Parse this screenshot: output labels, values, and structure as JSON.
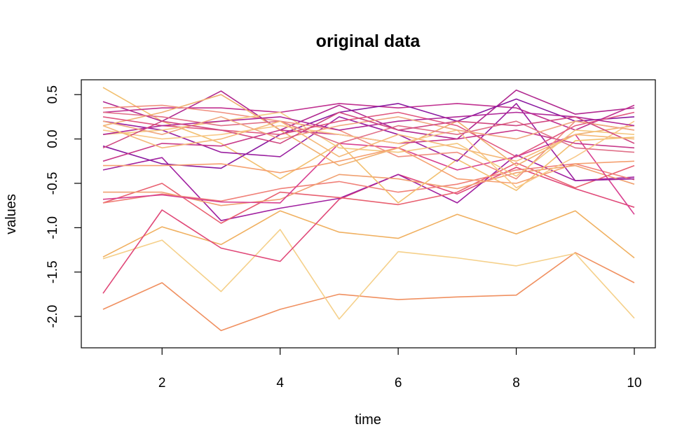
{
  "chart_data": {
    "type": "line",
    "title": "original data",
    "xlabel": "time",
    "ylabel": "values",
    "x": [
      1,
      2,
      3,
      4,
      5,
      6,
      7,
      8,
      9,
      10
    ],
    "xlim": [
      1,
      10
    ],
    "ylim": [
      -2.2,
      0.6
    ],
    "xticks": [
      2,
      4,
      6,
      8,
      10
    ],
    "xtick_labels": [
      "2",
      "4",
      "6",
      "8",
      "10"
    ],
    "yticks": [
      -2.0,
      -1.5,
      -1.0,
      -0.5,
      0.0,
      0.5
    ],
    "ytick_labels": [
      "-2.0",
      "-1.5",
      "-1.0",
      "-0.5",
      "0.0",
      "0.5"
    ],
    "grid": false,
    "legend": "none",
    "series": [
      {
        "color": "#f09060",
        "values": [
          -1.92,
          -1.62,
          -2.16,
          -1.92,
          -1.75,
          -1.81,
          -1.78,
          -1.76,
          -1.28,
          -1.62
        ]
      },
      {
        "color": "#f5d08a",
        "values": [
          -1.35,
          -1.14,
          -1.72,
          -1.02,
          -2.03,
          -1.27,
          -1.34,
          -1.43,
          -1.29,
          -2.02
        ]
      },
      {
        "color": "#f0b060",
        "values": [
          -1.33,
          -0.99,
          -1.19,
          -0.81,
          -1.05,
          -1.12,
          -0.85,
          -1.07,
          -0.81,
          -1.34
        ]
      },
      {
        "color": "#e04878",
        "values": [
          -1.74,
          -0.8,
          -1.23,
          -1.38,
          -0.68,
          -0.4,
          -0.62,
          -0.32,
          -0.56,
          -0.77
        ]
      },
      {
        "color": "#a020a0",
        "values": [
          -0.35,
          -0.21,
          -0.92,
          -0.78,
          -0.67,
          -0.4,
          -0.72,
          -0.18,
          -0.47,
          -0.43
        ]
      },
      {
        "color": "#e86070",
        "values": [
          -0.72,
          -0.5,
          -0.95,
          -0.6,
          -0.66,
          -0.74,
          -0.6,
          -0.27,
          -0.55,
          -0.3
        ]
      },
      {
        "color": "#f08078",
        "values": [
          -0.72,
          -0.62,
          -0.7,
          -0.56,
          -0.48,
          -0.6,
          -0.51,
          -0.35,
          -0.28,
          -0.46
        ]
      },
      {
        "color": "#f0a070",
        "values": [
          -0.6,
          -0.6,
          -0.75,
          -0.68,
          -0.4,
          -0.45,
          -0.56,
          -0.38,
          -0.3,
          -0.51
        ]
      },
      {
        "color": "#d84090",
        "values": [
          -0.68,
          -0.63,
          -0.71,
          -0.72,
          -0.05,
          -0.1,
          -0.35,
          -0.2,
          0.05,
          -0.85
        ]
      },
      {
        "color": "#f2c070",
        "values": [
          0.58,
          0.2,
          -0.05,
          -0.45,
          -0.05,
          -0.72,
          -0.23,
          -0.58,
          -0.02,
          0.02
        ]
      },
      {
        "color": "#b02890",
        "values": [
          0.42,
          0.2,
          0.54,
          0.1,
          0.38,
          0.1,
          0.0,
          0.55,
          0.28,
          0.35
        ]
      },
      {
        "color": "#c03090",
        "values": [
          0.3,
          0.35,
          0.35,
          0.3,
          0.4,
          0.35,
          0.4,
          0.35,
          0.1,
          0.38
        ]
      },
      {
        "color": "#8a1aa0",
        "values": [
          -0.08,
          -0.28,
          -0.33,
          0.05,
          0.3,
          0.4,
          0.2,
          0.45,
          0.2,
          0.25
        ]
      },
      {
        "color": "#9a20a0",
        "values": [
          0.2,
          0.1,
          -0.15,
          -0.2,
          0.25,
          0.05,
          -0.25,
          0.4,
          -0.47,
          -0.45
        ]
      },
      {
        "color": "#f09080",
        "values": [
          0.35,
          0.38,
          0.3,
          0.2,
          0.1,
          -0.2,
          -0.15,
          -0.45,
          0.2,
          0.1
        ]
      },
      {
        "color": "#f0b070",
        "values": [
          0.15,
          0.3,
          0.5,
          0.1,
          -0.3,
          -0.1,
          0.2,
          -0.3,
          0.05,
          0.15
        ]
      },
      {
        "color": "#e05880",
        "values": [
          0.25,
          0.15,
          0.1,
          0.05,
          0.2,
          0.3,
          0.15,
          -0.2,
          0.15,
          0.3
        ]
      },
      {
        "color": "#f3c880",
        "values": [
          0.05,
          0.1,
          0.2,
          0.3,
          -0.1,
          -0.15,
          -0.05,
          -0.42,
          0.1,
          0.05
        ]
      },
      {
        "color": "#c83a8a",
        "values": [
          -0.25,
          -0.05,
          -0.08,
          0.1,
          0.05,
          -0.05,
          0.0,
          0.1,
          -0.05,
          -0.1
        ]
      },
      {
        "color": "#f5a070",
        "values": [
          -0.3,
          -0.3,
          -0.28,
          -0.38,
          -0.25,
          -0.1,
          -0.45,
          -0.5,
          -0.28,
          -0.25
        ]
      },
      {
        "color": "#f8c888",
        "values": [
          0.1,
          0.0,
          0.05,
          0.15,
          0.05,
          -0.05,
          0.1,
          -0.55,
          -0.2,
          0.2
        ]
      },
      {
        "color": "#e07088",
        "values": [
          0.3,
          0.25,
          0.15,
          0.2,
          -0.05,
          0.15,
          0.05,
          0.2,
          -0.1,
          -0.15
        ]
      },
      {
        "color": "#b02898",
        "values": [
          0.05,
          0.15,
          0.2,
          0.25,
          0.1,
          0.2,
          0.25,
          0.3,
          0.25,
          0.15
        ]
      },
      {
        "color": "#f0a880",
        "values": [
          0.2,
          0.05,
          0.25,
          0.0,
          0.15,
          0.25,
          0.1,
          0.0,
          0.2,
          0.1
        ]
      },
      {
        "color": "#d04880",
        "values": [
          -0.1,
          0.2,
          0.1,
          -0.05,
          0.3,
          0.1,
          0.2,
          0.15,
          0.25,
          -0.05
        ]
      },
      {
        "color": "#f4b878",
        "values": [
          0.15,
          -0.1,
          0.0,
          0.2,
          -0.2,
          0.05,
          -0.1,
          -0.25,
          0.05,
          0.0
        ]
      }
    ]
  }
}
